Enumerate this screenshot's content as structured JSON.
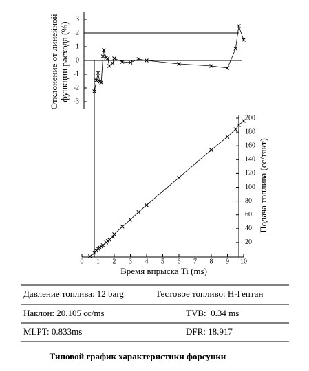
{
  "chart_data": [
    {
      "type": "line",
      "ylabel": [
        "Отклонение от линейной",
        "функции расхода (%)"
      ],
      "xlim": [
        0,
        10
      ],
      "ylim": [
        -3.5,
        3.5
      ],
      "yticks": [
        -3,
        -2,
        -1,
        0,
        1,
        2,
        3
      ],
      "reference_line": 2,
      "x": [
        0.77,
        0.9,
        1.0,
        1.1,
        1.2,
        1.3,
        1.35,
        1.5,
        1.6,
        1.7,
        1.9,
        2.0,
        2.5,
        3.0,
        3.5,
        4.0,
        6.0,
        8.0,
        9.0,
        9.5,
        9.7,
        10.0
      ],
      "series": [
        {
          "color": "#000000",
          "values": [
            -2.25,
            -1.45,
            -0.9,
            -1.55,
            -1.6,
            0.3,
            0.75,
            0.2,
            0.15,
            -0.4,
            -0.2,
            0.15,
            -0.1,
            -0.15,
            0.1,
            0.0,
            -0.25,
            -0.4,
            -0.55,
            0.85,
            2.5,
            1.5
          ]
        }
      ]
    },
    {
      "type": "line",
      "xlabel": "Время впрыска Ti (ms)",
      "ylabel": "Подача топлива (cc/такт)",
      "xlim": [
        0,
        10
      ],
      "ylim": [
        0,
        202
      ],
      "xticks": [
        0,
        1,
        2,
        3,
        4,
        5,
        6,
        7,
        8,
        9,
        10
      ],
      "yticks": [
        20,
        40,
        60,
        80,
        100,
        120,
        140,
        160,
        180,
        200
      ],
      "x": [
        0.5,
        0.77,
        0.9,
        1.0,
        1.1,
        1.2,
        1.3,
        1.5,
        1.6,
        1.7,
        1.9,
        2.0,
        2.5,
        3.0,
        3.5,
        4.0,
        6.0,
        8.0,
        9.0,
        9.5,
        9.7,
        10.0
      ],
      "series": [
        {
          "color": "#000000",
          "values": [
            0,
            5,
            8,
            11,
            13,
            14,
            16,
            20,
            22,
            24,
            28,
            32,
            43,
            53,
            64,
            74,
            114,
            154,
            173,
            184,
            190,
            196
          ]
        }
      ]
    }
  ],
  "table": {
    "rows": [
      [
        "Давление топлива: 12 barg",
        "Тестовое топливо: Н-Гептан"
      ],
      [
        "Наклон: 20.105 cc/ms",
        "TVB:  0.34 ms"
      ],
      [
        "MLPT: 0.833ms",
        "DFR: 18.917"
      ]
    ]
  },
  "caption": "Типовой график характеристики форсунки"
}
